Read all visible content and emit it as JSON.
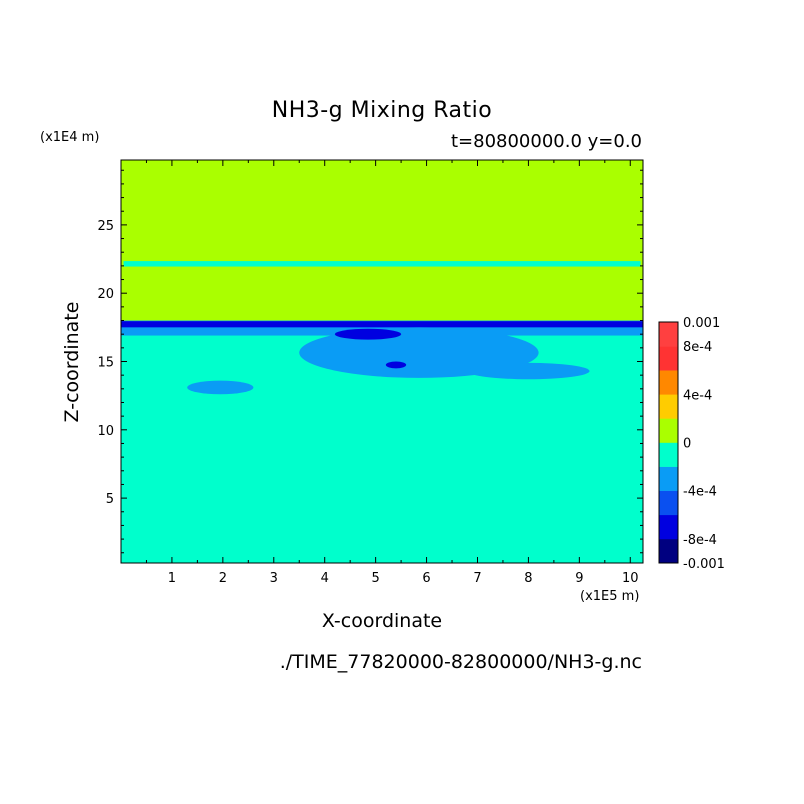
{
  "chart_data": {
    "type": "heatmap",
    "title": "NH3-g Mixing Ratio",
    "subtitle": "t=80800000.0 y=0.0",
    "xlabel": "X-coordinate",
    "ylabel": "Z-coordinate",
    "x_unit": "(x1E5 m)",
    "z_unit": "(x1E4 m)",
    "xlim": [
      0,
      10.25
    ],
    "zlim": [
      0.25,
      29.75
    ],
    "x_ticks": [
      {
        "value": 1,
        "label": "1"
      },
      {
        "value": 2,
        "label": "2"
      },
      {
        "value": 3,
        "label": "3"
      },
      {
        "value": 4,
        "label": "4"
      },
      {
        "value": 5,
        "label": "5"
      },
      {
        "value": 6,
        "label": "6"
      },
      {
        "value": 7,
        "label": "7"
      },
      {
        "value": 8,
        "label": "8"
      },
      {
        "value": 9,
        "label": "9"
      },
      {
        "value": 10,
        "label": "10"
      }
    ],
    "z_ticks": [
      {
        "value": 5,
        "label": "5"
      },
      {
        "value": 10,
        "label": "10"
      },
      {
        "value": 15,
        "label": "15"
      },
      {
        "value": 20,
        "label": "20"
      },
      {
        "value": 25,
        "label": "25"
      }
    ],
    "colorbar": {
      "range": [
        -0.001,
        0.001
      ],
      "colors": [
        "#000080",
        "#0000e0",
        "#0a50f0",
        "#0a9cf5",
        "#00ffcc",
        "#aaff00",
        "#ffcc00",
        "#ff8800",
        "#ff3333",
        "#ff4040"
      ],
      "ticks": [
        {
          "value": 0.001,
          "label": "0.001"
        },
        {
          "value": 0.0008,
          "label": "8e-4"
        },
        {
          "value": 0.0004,
          "label": "4e-4"
        },
        {
          "value": 0,
          "label": "0"
        },
        {
          "value": -0.0004,
          "label": "-4e-4"
        },
        {
          "value": -0.0008,
          "label": "-8e-4"
        },
        {
          "value": -0.001,
          "label": "-0.001"
        }
      ]
    },
    "regions": [
      {
        "name": "upper-layer",
        "level": 0.0001,
        "x": [
          0,
          10.25
        ],
        "z": [
          17.9,
          29.75
        ]
      },
      {
        "name": "lower-layer",
        "level": -0.0001,
        "x": [
          0,
          10.25
        ],
        "z": [
          0.25,
          17.9
        ]
      },
      {
        "name": "strip-22km",
        "level": -0.0001,
        "x": [
          0.05,
          10.2
        ],
        "z": [
          21.95,
          22.35
        ]
      },
      {
        "name": "band-18km-light",
        "level": -0.0003,
        "x": [
          0,
          10.25
        ],
        "z": [
          16.9,
          18.0
        ]
      },
      {
        "name": "band-18km-dark",
        "level": -0.0007,
        "x": [
          0,
          10.25
        ],
        "z": [
          17.5,
          17.95
        ]
      },
      {
        "name": "patch-16km",
        "level": -0.0003,
        "x": [
          3.5,
          8.2
        ],
        "z": [
          13.8,
          17.5
        ]
      },
      {
        "name": "patch-14km",
        "level": -0.0003,
        "x": [
          6.8,
          9.2
        ],
        "z": [
          13.7,
          14.9
        ]
      },
      {
        "name": "patch-13km",
        "level": -0.0003,
        "x": [
          1.3,
          2.6
        ],
        "z": [
          12.6,
          13.6
        ]
      },
      {
        "name": "core-15km",
        "level": -0.0007,
        "x": [
          5.2,
          5.6
        ],
        "z": [
          14.5,
          15.0
        ]
      },
      {
        "name": "core-17km",
        "level": -0.0007,
        "x": [
          4.2,
          5.5
        ],
        "z": [
          16.6,
          17.4
        ]
      }
    ]
  }
}
